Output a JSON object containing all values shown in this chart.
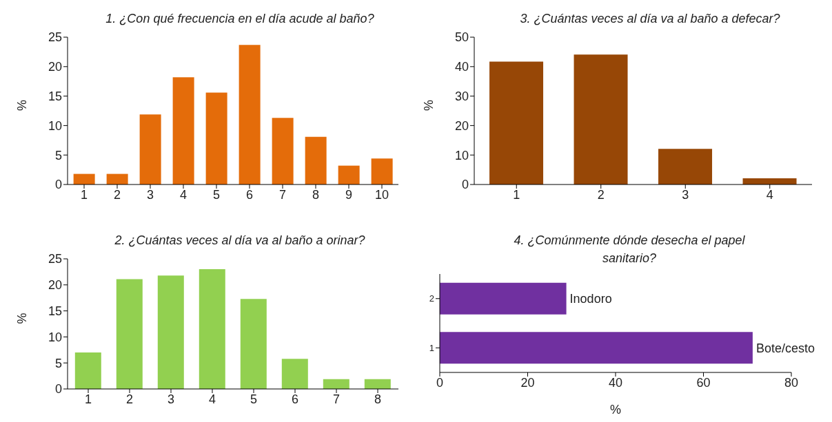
{
  "chart_data": [
    {
      "type": "bar",
      "title": "1. ¿Con qué frecuencia en el día acude al baño?",
      "ylabel": "%",
      "categories": [
        "1",
        "2",
        "3",
        "4",
        "5",
        "6",
        "7",
        "8",
        "9",
        "10"
      ],
      "values": [
        1.8,
        1.8,
        11.9,
        18.2,
        15.6,
        23.7,
        11.3,
        8.1,
        3.2,
        4.4
      ],
      "color": "#e46c0a",
      "ylim": [
        0,
        25
      ],
      "yticks": [
        0,
        5,
        10,
        15,
        20,
        25
      ],
      "grid": false,
      "legend": false
    },
    {
      "type": "bar",
      "title": "3. ¿Cuántas veces al día va al baño a defecar?",
      "ylabel": "%",
      "categories": [
        "1",
        "2",
        "3",
        "4"
      ],
      "values": [
        41.7,
        44.1,
        12.1,
        2.1
      ],
      "color": "#974706",
      "ylim": [
        0,
        50
      ],
      "yticks": [
        0,
        10,
        20,
        30,
        40,
        50
      ],
      "grid": false,
      "legend": false
    },
    {
      "type": "bar",
      "title": "2. ¿Cuántas veces al día va al baño a orinar?",
      "ylabel": "%",
      "categories": [
        "1",
        "2",
        "3",
        "4",
        "5",
        "6",
        "7",
        "8"
      ],
      "values": [
        7,
        21.1,
        21.8,
        23,
        17.3,
        5.8,
        1.9,
        1.9
      ],
      "color": "#92d050",
      "ylim": [
        0,
        25
      ],
      "yticks": [
        0,
        5,
        10,
        15,
        20,
        25
      ],
      "grid": false,
      "legend": false
    },
    {
      "type": "bar",
      "orientation": "horizontal",
      "title": "4. ¿Comúnmente dónde desecha el papel sanitario?",
      "xlabel": "%",
      "categories": [
        "2",
        "1"
      ],
      "values": [
        28.8,
        71.2
      ],
      "value_labels": [
        "Inodoro",
        "Bote/cesto"
      ],
      "color": "#7030a0",
      "xlim": [
        0,
        80
      ],
      "xticks": [
        0,
        20,
        40,
        60,
        80
      ],
      "grid": false,
      "legend": false
    }
  ]
}
